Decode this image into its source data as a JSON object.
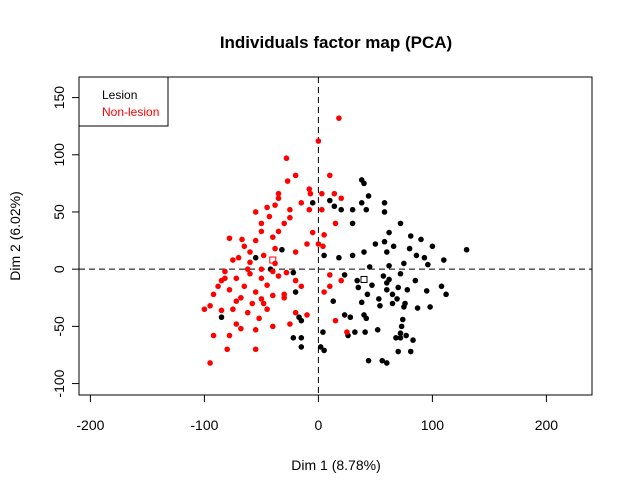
{
  "chart_data": {
    "type": "scatter",
    "title": "Individuals factor map (PCA)",
    "xlabel": "Dim 1 (8.78%)",
    "ylabel": "Dim 2 (6.02%)",
    "xlim": [
      -210,
      240
    ],
    "ylim": [
      -110,
      168
    ],
    "xticks": [
      -200,
      -100,
      0,
      100,
      200
    ],
    "yticks": [
      -100,
      -50,
      0,
      50,
      100,
      150
    ],
    "grid": false,
    "reference_lines": {
      "x": 0,
      "y": 0,
      "style": "dashed"
    },
    "legend": {
      "position": "top-left"
    },
    "series": [
      {
        "name": "Lesion",
        "color": "#000000",
        "centroid": [
          40,
          -9
        ],
        "points": [
          [
            38,
            78
          ],
          [
            40,
            75
          ],
          [
            44,
            64
          ],
          [
            38,
            58
          ],
          [
            -5,
            58
          ],
          [
            10,
            60
          ],
          [
            14,
            55
          ],
          [
            20,
            52
          ],
          [
            30,
            52
          ],
          [
            42,
            52
          ],
          [
            30,
            40
          ],
          [
            58,
            58
          ],
          [
            58,
            50
          ],
          [
            72,
            40
          ],
          [
            62,
            32
          ],
          [
            81,
            29
          ],
          [
            90,
            26
          ],
          [
            -32,
            17
          ],
          [
            50,
            22
          ],
          [
            58,
            24
          ],
          [
            66,
            20
          ],
          [
            80,
            18
          ],
          [
            100,
            20
          ],
          [
            130,
            17
          ],
          [
            40,
            15
          ],
          [
            60,
            15
          ],
          [
            -55,
            10
          ],
          [
            5,
            12
          ],
          [
            18,
            10
          ],
          [
            30,
            12
          ],
          [
            86,
            12
          ],
          [
            93,
            10
          ],
          [
            110,
            8
          ],
          [
            45,
            2
          ],
          [
            62,
            3
          ],
          [
            75,
            5
          ],
          [
            96,
            4
          ],
          [
            -42,
            0
          ],
          [
            -22,
            -3
          ],
          [
            23,
            -5
          ],
          [
            34,
            -10
          ],
          [
            57,
            -6
          ],
          [
            62,
            -9
          ],
          [
            60,
            -12
          ],
          [
            72,
            -4
          ],
          [
            85,
            -10
          ],
          [
            35,
            -16
          ],
          [
            47,
            -14
          ],
          [
            60,
            -18
          ],
          [
            70,
            -16
          ],
          [
            78,
            -18
          ],
          [
            43,
            -22
          ],
          [
            53,
            -26
          ],
          [
            65,
            -22
          ],
          [
            69,
            -26
          ],
          [
            95,
            -19
          ],
          [
            108,
            -15
          ],
          [
            112,
            -22
          ],
          [
            -20,
            -20
          ],
          [
            13,
            -28
          ],
          [
            38,
            -29
          ],
          [
            54,
            -32
          ],
          [
            65,
            -30
          ],
          [
            75,
            -33
          ],
          [
            76,
            -30
          ],
          [
            87,
            -34
          ],
          [
            98,
            -33
          ],
          [
            -22,
            -60
          ],
          [
            -85,
            -42
          ],
          [
            -17,
            -42
          ],
          [
            -15,
            -45
          ],
          [
            23,
            -40
          ],
          [
            28,
            -42
          ],
          [
            40,
            -40
          ],
          [
            42,
            -43
          ],
          [
            74,
            -44
          ],
          [
            73,
            -50
          ],
          [
            72,
            -56
          ],
          [
            4,
            -55
          ],
          [
            26,
            -58
          ],
          [
            32,
            -55
          ],
          [
            41,
            -55
          ],
          [
            52,
            -53
          ],
          [
            68,
            -60
          ],
          [
            72,
            -60
          ],
          [
            77,
            -58
          ],
          [
            83,
            -62
          ],
          [
            -15,
            -60
          ],
          [
            70,
            -72
          ],
          [
            81,
            -72
          ],
          [
            -15,
            -68
          ],
          [
            2,
            -68
          ],
          [
            5,
            -71
          ],
          [
            44,
            -80
          ],
          [
            56,
            -80
          ],
          [
            60,
            -82
          ]
        ]
      },
      {
        "name": "Non-lesion",
        "color": "#ff0000",
        "centroid": [
          -40,
          8
        ],
        "points": [
          [
            18,
            132
          ],
          [
            0,
            112
          ],
          [
            -28,
            97
          ],
          [
            -20,
            82
          ],
          [
            10,
            82
          ],
          [
            -27,
            77
          ],
          [
            -8,
            70
          ],
          [
            -35,
            66
          ],
          [
            -7,
            66
          ],
          [
            3,
            66
          ],
          [
            -35,
            62
          ],
          [
            14,
            66
          ],
          [
            -15,
            58
          ],
          [
            -38,
            56
          ],
          [
            -45,
            54
          ],
          [
            -25,
            52
          ],
          [
            -8,
            52
          ],
          [
            3,
            52
          ],
          [
            -55,
            50
          ],
          [
            -43,
            46
          ],
          [
            -25,
            45
          ],
          [
            -30,
            40
          ],
          [
            -50,
            40
          ],
          [
            20,
            62
          ],
          [
            15,
            40
          ],
          [
            -50,
            33
          ],
          [
            -35,
            33
          ],
          [
            -5,
            32
          ],
          [
            -67,
            26
          ],
          [
            -40,
            28
          ],
          [
            5,
            30
          ],
          [
            -55,
            25
          ],
          [
            -65,
            20
          ],
          [
            -10,
            22
          ],
          [
            0,
            22
          ],
          [
            -78,
            27
          ],
          [
            -60,
            15
          ],
          [
            -38,
            18
          ],
          [
            -20,
            15
          ],
          [
            -70,
            10
          ],
          [
            -48,
            12
          ],
          [
            4,
            20
          ],
          [
            -75,
            8
          ],
          [
            -60,
            6
          ],
          [
            -38,
            5
          ],
          [
            -50,
            0
          ],
          [
            -82,
            -2
          ],
          [
            -60,
            -4
          ],
          [
            -40,
            -2
          ],
          [
            -28,
            -3
          ],
          [
            -72,
            -8
          ],
          [
            -85,
            -10
          ],
          [
            -50,
            -8
          ],
          [
            -35,
            -6
          ],
          [
            10,
            -5
          ],
          [
            -65,
            -15
          ],
          [
            -45,
            -14
          ],
          [
            -20,
            -10
          ],
          [
            -78,
            -18
          ],
          [
            -55,
            -20
          ],
          [
            -30,
            -22
          ],
          [
            -68,
            -25
          ],
          [
            -50,
            -26
          ],
          [
            -40,
            -23
          ],
          [
            -72,
            -28
          ],
          [
            -58,
            -30
          ],
          [
            -92,
            -22
          ],
          [
            -75,
            -35
          ],
          [
            -45,
            -35
          ],
          [
            -85,
            -36
          ],
          [
            -62,
            -38
          ],
          [
            -52,
            -43
          ],
          [
            -72,
            -48
          ],
          [
            -95,
            -32
          ],
          [
            -100,
            -35
          ],
          [
            -68,
            -52
          ],
          [
            -55,
            -53
          ],
          [
            -78,
            -58
          ],
          [
            -92,
            -58
          ],
          [
            -40,
            -50
          ],
          [
            -80,
            -70
          ],
          [
            -55,
            -70
          ],
          [
            -95,
            -82
          ],
          [
            -30,
            -25
          ],
          [
            -25,
            -48
          ],
          [
            -20,
            -38
          ],
          [
            -10,
            -40
          ],
          [
            5,
            -20
          ],
          [
            10,
            -15
          ],
          [
            15,
            -45
          ],
          [
            20,
            -10
          ],
          [
            25,
            -55
          ],
          [
            -15,
            -15
          ],
          [
            -62,
            0
          ],
          [
            -88,
            -15
          ],
          [
            -48,
            -30
          ],
          [
            -82,
            -8
          ]
        ]
      }
    ]
  }
}
